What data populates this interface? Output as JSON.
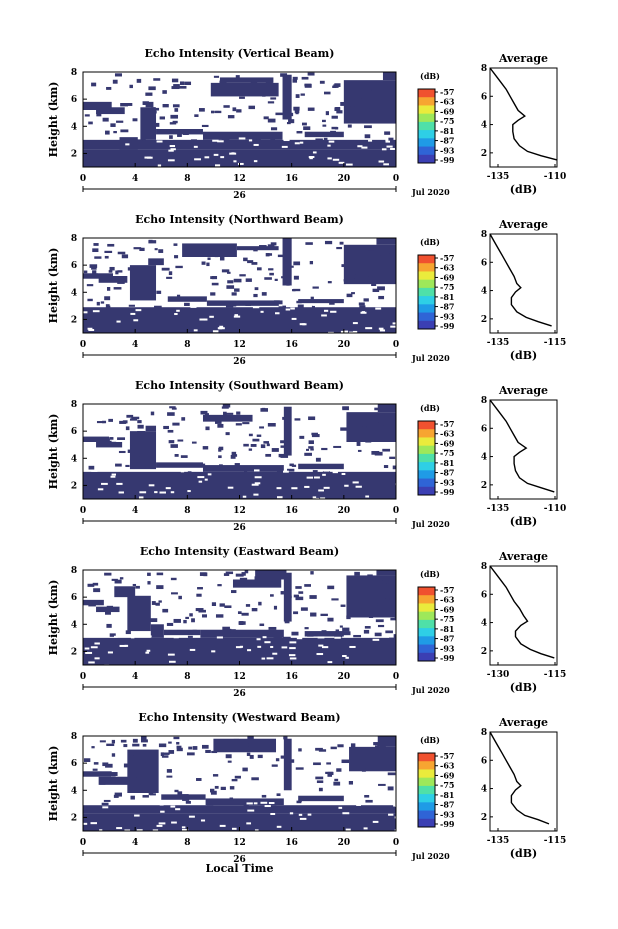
{
  "chart_data": [
    {
      "type": "heatmap",
      "title": "Echo Intensity (Vertical Beam)",
      "ylabel": "Height (km)",
      "x_ticks": [
        "0",
        "4",
        "8",
        "12",
        "16",
        "20",
        "0"
      ],
      "y_ticks": [
        "8",
        "6",
        "4",
        "2"
      ],
      "xlim": [
        0,
        24
      ],
      "ylim": [
        1,
        8
      ],
      "date_day": "26",
      "date_month": "Jul 2020",
      "colorbar": {
        "unit": "(dB)",
        "ticks": [
          "-57",
          "-63",
          "-69",
          "-75",
          "-81",
          "-87",
          "-93",
          "-99"
        ]
      },
      "profile": {
        "title": "Average",
        "xlabel": "(dB)",
        "x_ticks": [
          "-135",
          "-110"
        ],
        "xlim": [
          -135,
          -110
        ],
        "y_ticks": [
          "8",
          "6",
          "4",
          "2"
        ],
        "ylim": [
          1,
          8
        ],
        "points": [
          [
            -135,
            8
          ],
          [
            -133,
            7.5
          ],
          [
            -131,
            7
          ],
          [
            -129,
            6.5
          ],
          [
            -127.5,
            6
          ],
          [
            -126,
            5.5
          ],
          [
            -124.5,
            5
          ],
          [
            -122,
            4.6
          ],
          [
            -124.5,
            4.3
          ],
          [
            -126.5,
            4
          ],
          [
            -126.5,
            3.5
          ],
          [
            -126,
            3
          ],
          [
            -124,
            2.5
          ],
          [
            -121,
            2.1
          ],
          [
            -116,
            1.8
          ],
          [
            -110,
            1.5
          ]
        ]
      }
    },
    {
      "type": "heatmap",
      "title": "Echo Intensity (Northward Beam)",
      "ylabel": "Height (km)",
      "x_ticks": [
        "0",
        "4",
        "8",
        "12",
        "16",
        "20",
        "0"
      ],
      "y_ticks": [
        "8",
        "6",
        "4",
        "2"
      ],
      "xlim": [
        0,
        24
      ],
      "ylim": [
        1,
        8
      ],
      "date_day": "26",
      "date_month": "Jul 2020",
      "colorbar": {
        "unit": "(dB)",
        "ticks": [
          "-57",
          "-63",
          "-69",
          "-75",
          "-81",
          "-87",
          "-93",
          "-99"
        ]
      },
      "profile": {
        "title": "Average",
        "xlabel": "(dB)",
        "x_ticks": [
          "-135",
          "-115"
        ],
        "xlim": [
          -135,
          -110
        ],
        "y_ticks": [
          "8",
          "6",
          "4",
          "2"
        ],
        "ylim": [
          1,
          8
        ],
        "points": [
          [
            -135,
            8
          ],
          [
            -133.5,
            7.5
          ],
          [
            -132,
            7
          ],
          [
            -130.5,
            6.5
          ],
          [
            -129,
            6
          ],
          [
            -127.5,
            5.5
          ],
          [
            -126,
            5
          ],
          [
            -125,
            4.5
          ],
          [
            -123.5,
            4.2
          ],
          [
            -125.5,
            3.9
          ],
          [
            -127,
            3.5
          ],
          [
            -127,
            3
          ],
          [
            -125,
            2.5
          ],
          [
            -121.5,
            2.1
          ],
          [
            -117,
            1.8
          ],
          [
            -112,
            1.5
          ]
        ]
      }
    },
    {
      "type": "heatmap",
      "title": "Echo Intensity (Southward Beam)",
      "ylabel": "Height (km)",
      "x_ticks": [
        "0",
        "4",
        "8",
        "12",
        "16",
        "20",
        "0"
      ],
      "y_ticks": [
        "8",
        "6",
        "4",
        "2"
      ],
      "xlim": [
        0,
        24
      ],
      "ylim": [
        1,
        8
      ],
      "date_day": "26",
      "date_month": "Jul 2020",
      "colorbar": {
        "unit": "(dB)",
        "ticks": [
          "-57",
          "-63",
          "-69",
          "-75",
          "-81",
          "-87",
          "-93",
          "-99"
        ]
      },
      "profile": {
        "title": "Average",
        "xlabel": "(dB)",
        "x_ticks": [
          "-135",
          "-110"
        ],
        "xlim": [
          -135,
          -110
        ],
        "y_ticks": [
          "8",
          "6",
          "4",
          "2"
        ],
        "ylim": [
          1,
          8
        ],
        "points": [
          [
            -135,
            8
          ],
          [
            -133,
            7.5
          ],
          [
            -131,
            7
          ],
          [
            -129,
            6.5
          ],
          [
            -127.5,
            6
          ],
          [
            -126,
            5.5
          ],
          [
            -124.5,
            5
          ],
          [
            -121.5,
            4.6
          ],
          [
            -124,
            4.3
          ],
          [
            -126,
            4
          ],
          [
            -126,
            3.5
          ],
          [
            -125.5,
            3
          ],
          [
            -124,
            2.5
          ],
          [
            -121,
            2.1
          ],
          [
            -116,
            1.8
          ],
          [
            -111,
            1.5
          ]
        ]
      }
    },
    {
      "type": "heatmap",
      "title": "Echo Intensity (Eastward Beam)",
      "ylabel": "Height (km)",
      "x_ticks": [
        "0",
        "4",
        "8",
        "12",
        "16",
        "20",
        "0"
      ],
      "y_ticks": [
        "8",
        "6",
        "4",
        "2"
      ],
      "xlim": [
        0,
        24
      ],
      "ylim": [
        1,
        8
      ],
      "date_day": "26",
      "date_month": "Jul 2020",
      "colorbar": {
        "unit": "(dB)",
        "ticks": [
          "-57",
          "-63",
          "-69",
          "-75",
          "-81",
          "-87",
          "-93",
          "-99"
        ]
      },
      "profile": {
        "title": "Average",
        "xlabel": "(dB)",
        "x_ticks": [
          "-130",
          "-115"
        ],
        "xlim": [
          -135,
          -110
        ],
        "y_ticks": [
          "8",
          "6",
          "4",
          "2"
        ],
        "ylim": [
          1,
          8
        ],
        "points": [
          [
            -135,
            8
          ],
          [
            -133,
            7.5
          ],
          [
            -131,
            7
          ],
          [
            -129,
            6.5
          ],
          [
            -127.5,
            6
          ],
          [
            -126,
            5.5
          ],
          [
            -124,
            5
          ],
          [
            -122.5,
            4.5
          ],
          [
            -121,
            4.1
          ],
          [
            -123.5,
            3.8
          ],
          [
            -125.5,
            3.4
          ],
          [
            -125.5,
            3
          ],
          [
            -123.5,
            2.5
          ],
          [
            -120,
            2.1
          ],
          [
            -116,
            1.8
          ],
          [
            -111,
            1.5
          ]
        ]
      }
    },
    {
      "type": "heatmap",
      "title": "Echo Intensity (Westward Beam)",
      "ylabel": "Height (km)",
      "xlabel": "Local Time",
      "x_ticks": [
        "0",
        "4",
        "8",
        "12",
        "16",
        "20",
        "0"
      ],
      "y_ticks": [
        "8",
        "6",
        "4",
        "2"
      ],
      "xlim": [
        0,
        24
      ],
      "ylim": [
        1,
        8
      ],
      "date_day": "26",
      "date_month": "Jul 2020",
      "colorbar": {
        "unit": "(dB)",
        "ticks": [
          "-57",
          "-63",
          "-69",
          "-75",
          "-81",
          "-87",
          "-93",
          "-99"
        ]
      },
      "profile": {
        "title": "Average",
        "xlabel": "(dB)",
        "x_ticks": [
          "-135",
          "-115"
        ],
        "xlim": [
          -135,
          -110
        ],
        "y_ticks": [
          "8",
          "6",
          "4",
          "2"
        ],
        "ylim": [
          1,
          8
        ],
        "points": [
          [
            -135,
            8
          ],
          [
            -133.5,
            7.5
          ],
          [
            -132,
            7
          ],
          [
            -130.5,
            6.5
          ],
          [
            -129,
            6
          ],
          [
            -127.5,
            5.5
          ],
          [
            -126,
            5
          ],
          [
            -125,
            4.5
          ],
          [
            -123.5,
            4.2
          ],
          [
            -125.5,
            3.9
          ],
          [
            -127,
            3.5
          ],
          [
            -127,
            3
          ],
          [
            -125,
            2.5
          ],
          [
            -122,
            2.1
          ],
          [
            -117,
            1.8
          ],
          [
            -113,
            1.5
          ]
        ]
      }
    }
  ],
  "colors": {
    "echo_fill": "#363870",
    "background": "#ffffff",
    "colorbar": [
      "#3b3fb3",
      "#2f64d6",
      "#1f9be6",
      "#2ecfe6",
      "#4fe0a8",
      "#9ee85a",
      "#eaeb3c",
      "#f7a531",
      "#f0512f"
    ]
  }
}
